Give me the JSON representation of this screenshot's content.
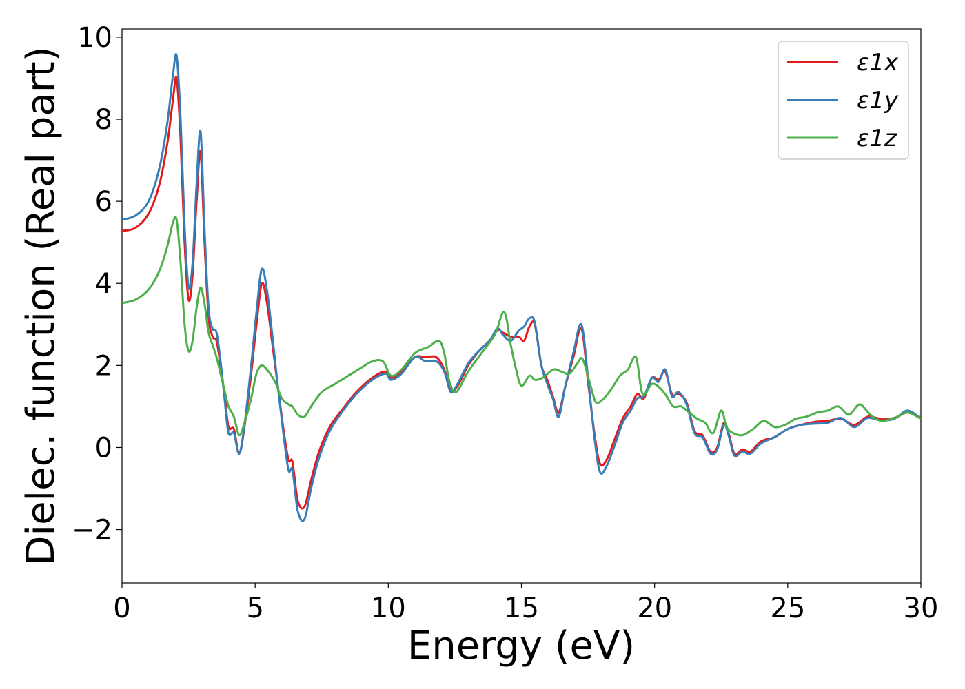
{
  "chart_data": {
    "type": "line",
    "xlabel": "Energy (eV)",
    "ylabel": "Dielec. function (Real part)",
    "xlim": [
      0,
      30
    ],
    "ylim": [
      -3.3,
      10.2
    ],
    "xticks": [
      0,
      5,
      10,
      15,
      20,
      25,
      30
    ],
    "xtick_labels": [
      "0",
      "5",
      "10",
      "15",
      "20",
      "25",
      "30"
    ],
    "yticks": [
      -2,
      0,
      2,
      4,
      6,
      8,
      10
    ],
    "ytick_labels": [
      "−2",
      "0",
      "2",
      "4",
      "6",
      "8",
      "10"
    ],
    "grid": false,
    "legend_position": "top-right",
    "series": [
      {
        "name": "ε1x",
        "color": "#e41a1c",
        "points": [
          [
            0,
            5.28
          ],
          [
            0.5,
            5.35
          ],
          [
            1.0,
            5.7
          ],
          [
            1.4,
            6.4
          ],
          [
            1.7,
            7.4
          ],
          [
            1.9,
            8.4
          ],
          [
            2.05,
            9.0
          ],
          [
            2.2,
            7.5
          ],
          [
            2.35,
            5.0
          ],
          [
            2.5,
            3.6
          ],
          [
            2.65,
            4.2
          ],
          [
            2.8,
            6.0
          ],
          [
            2.95,
            7.2
          ],
          [
            3.1,
            5.0
          ],
          [
            3.25,
            3.2
          ],
          [
            3.4,
            2.7
          ],
          [
            3.55,
            2.6
          ],
          [
            3.7,
            2.0
          ],
          [
            3.85,
            1.3
          ],
          [
            4.0,
            0.5
          ],
          [
            4.2,
            0.45
          ],
          [
            4.4,
            -0.15
          ],
          [
            4.6,
            0.5
          ],
          [
            4.85,
            1.8
          ],
          [
            5.05,
            3.0
          ],
          [
            5.25,
            4.0
          ],
          [
            5.45,
            3.5
          ],
          [
            5.65,
            2.5
          ],
          [
            5.85,
            1.5
          ],
          [
            6.05,
            0.5
          ],
          [
            6.25,
            -0.3
          ],
          [
            6.4,
            -0.35
          ],
          [
            6.6,
            -1.3
          ],
          [
            6.85,
            -1.45
          ],
          [
            7.1,
            -0.8
          ],
          [
            7.4,
            -0.1
          ],
          [
            7.8,
            0.5
          ],
          [
            8.3,
            0.95
          ],
          [
            8.8,
            1.35
          ],
          [
            9.4,
            1.7
          ],
          [
            9.9,
            1.85
          ],
          [
            10.1,
            1.7
          ],
          [
            10.5,
            1.85
          ],
          [
            11.0,
            2.2
          ],
          [
            11.4,
            2.2
          ],
          [
            11.8,
            2.2
          ],
          [
            12.1,
            1.9
          ],
          [
            12.35,
            1.4
          ],
          [
            12.6,
            1.5
          ],
          [
            13.0,
            2.0
          ],
          [
            13.4,
            2.35
          ],
          [
            13.8,
            2.6
          ],
          [
            14.1,
            2.85
          ],
          [
            14.3,
            2.8
          ],
          [
            14.6,
            2.7
          ],
          [
            14.9,
            2.7
          ],
          [
            15.1,
            2.6
          ],
          [
            15.3,
            2.95
          ],
          [
            15.5,
            3.0
          ],
          [
            15.75,
            2.0
          ],
          [
            16.0,
            1.6
          ],
          [
            16.2,
            1.2
          ],
          [
            16.4,
            0.85
          ],
          [
            16.65,
            1.5
          ],
          [
            16.95,
            2.2
          ],
          [
            17.25,
            2.9
          ],
          [
            17.5,
            1.6
          ],
          [
            17.75,
            0.3
          ],
          [
            17.95,
            -0.4
          ],
          [
            18.2,
            -0.3
          ],
          [
            18.5,
            0.2
          ],
          [
            18.8,
            0.7
          ],
          [
            19.1,
            1.0
          ],
          [
            19.35,
            1.3
          ],
          [
            19.6,
            1.2
          ],
          [
            19.9,
            1.7
          ],
          [
            20.15,
            1.65
          ],
          [
            20.4,
            1.85
          ],
          [
            20.65,
            1.3
          ],
          [
            20.9,
            1.3
          ],
          [
            21.2,
            1.1
          ],
          [
            21.5,
            0.4
          ],
          [
            21.8,
            0.3
          ],
          [
            22.1,
            -0.1
          ],
          [
            22.35,
            0.0
          ],
          [
            22.6,
            0.6
          ],
          [
            22.8,
            0.3
          ],
          [
            23.0,
            -0.15
          ],
          [
            23.3,
            -0.05
          ],
          [
            23.6,
            -0.1
          ],
          [
            24.0,
            0.15
          ],
          [
            24.5,
            0.25
          ],
          [
            25.0,
            0.45
          ],
          [
            25.5,
            0.55
          ],
          [
            26.0,
            0.62
          ],
          [
            26.5,
            0.65
          ],
          [
            27.0,
            0.7
          ],
          [
            27.5,
            0.55
          ],
          [
            28.0,
            0.75
          ],
          [
            28.5,
            0.7
          ],
          [
            29.0,
            0.72
          ],
          [
            29.5,
            0.85
          ],
          [
            30.0,
            0.72
          ]
        ]
      },
      {
        "name": "ε1y",
        "color": "#377eb8",
        "points": [
          [
            0,
            5.55
          ],
          [
            0.5,
            5.65
          ],
          [
            1.0,
            6.0
          ],
          [
            1.4,
            6.8
          ],
          [
            1.7,
            7.9
          ],
          [
            1.9,
            9.0
          ],
          [
            2.05,
            9.55
          ],
          [
            2.2,
            8.0
          ],
          [
            2.35,
            5.4
          ],
          [
            2.5,
            3.9
          ],
          [
            2.65,
            4.5
          ],
          [
            2.8,
            6.4
          ],
          [
            2.95,
            7.7
          ],
          [
            3.1,
            5.3
          ],
          [
            3.25,
            3.4
          ],
          [
            3.4,
            2.9
          ],
          [
            3.55,
            2.8
          ],
          [
            3.7,
            2.1
          ],
          [
            3.85,
            1.2
          ],
          [
            4.0,
            0.35
          ],
          [
            4.2,
            0.35
          ],
          [
            4.4,
            -0.15
          ],
          [
            4.6,
            0.55
          ],
          [
            4.85,
            2.0
          ],
          [
            5.05,
            3.3
          ],
          [
            5.25,
            4.35
          ],
          [
            5.45,
            3.8
          ],
          [
            5.65,
            2.7
          ],
          [
            5.85,
            1.5
          ],
          [
            6.05,
            0.4
          ],
          [
            6.25,
            -0.55
          ],
          [
            6.4,
            -0.55
          ],
          [
            6.6,
            -1.55
          ],
          [
            6.85,
            -1.75
          ],
          [
            7.1,
            -1.0
          ],
          [
            7.4,
            -0.25
          ],
          [
            7.8,
            0.4
          ],
          [
            8.3,
            0.9
          ],
          [
            8.8,
            1.3
          ],
          [
            9.4,
            1.65
          ],
          [
            9.9,
            1.8
          ],
          [
            10.1,
            1.65
          ],
          [
            10.5,
            1.8
          ],
          [
            11.0,
            2.2
          ],
          [
            11.4,
            2.1
          ],
          [
            11.8,
            2.1
          ],
          [
            12.1,
            1.85
          ],
          [
            12.35,
            1.35
          ],
          [
            12.6,
            1.55
          ],
          [
            13.0,
            2.05
          ],
          [
            13.4,
            2.35
          ],
          [
            13.8,
            2.6
          ],
          [
            14.1,
            2.9
          ],
          [
            14.3,
            2.75
          ],
          [
            14.6,
            2.6
          ],
          [
            14.9,
            2.85
          ],
          [
            15.1,
            2.95
          ],
          [
            15.3,
            3.15
          ],
          [
            15.5,
            3.05
          ],
          [
            15.75,
            2.0
          ],
          [
            16.0,
            1.5
          ],
          [
            16.2,
            1.15
          ],
          [
            16.4,
            0.75
          ],
          [
            16.65,
            1.5
          ],
          [
            16.95,
            2.3
          ],
          [
            17.25,
            3.0
          ],
          [
            17.5,
            1.7
          ],
          [
            17.75,
            0.2
          ],
          [
            17.95,
            -0.6
          ],
          [
            18.2,
            -0.45
          ],
          [
            18.5,
            0.05
          ],
          [
            18.8,
            0.6
          ],
          [
            19.1,
            0.9
          ],
          [
            19.35,
            1.2
          ],
          [
            19.6,
            1.25
          ],
          [
            19.9,
            1.7
          ],
          [
            20.15,
            1.6
          ],
          [
            20.4,
            1.9
          ],
          [
            20.65,
            1.25
          ],
          [
            20.9,
            1.35
          ],
          [
            21.2,
            1.05
          ],
          [
            21.5,
            0.35
          ],
          [
            21.8,
            0.25
          ],
          [
            22.1,
            -0.15
          ],
          [
            22.35,
            -0.05
          ],
          [
            22.6,
            0.55
          ],
          [
            22.8,
            0.25
          ],
          [
            23.0,
            -0.2
          ],
          [
            23.3,
            -0.1
          ],
          [
            23.6,
            -0.15
          ],
          [
            24.0,
            0.1
          ],
          [
            24.5,
            0.25
          ],
          [
            25.0,
            0.45
          ],
          [
            25.5,
            0.55
          ],
          [
            26.0,
            0.58
          ],
          [
            26.5,
            0.6
          ],
          [
            27.0,
            0.72
          ],
          [
            27.5,
            0.5
          ],
          [
            28.0,
            0.72
          ],
          [
            28.5,
            0.66
          ],
          [
            29.0,
            0.7
          ],
          [
            29.5,
            0.9
          ],
          [
            30.0,
            0.7
          ]
        ]
      },
      {
        "name": "ε1z",
        "color": "#4daf4a",
        "points": [
          [
            0,
            3.52
          ],
          [
            0.5,
            3.6
          ],
          [
            1.0,
            3.85
          ],
          [
            1.4,
            4.3
          ],
          [
            1.7,
            4.9
          ],
          [
            1.9,
            5.45
          ],
          [
            2.05,
            5.55
          ],
          [
            2.2,
            4.5
          ],
          [
            2.35,
            3.0
          ],
          [
            2.5,
            2.35
          ],
          [
            2.65,
            2.6
          ],
          [
            2.8,
            3.4
          ],
          [
            2.95,
            3.9
          ],
          [
            3.1,
            3.5
          ],
          [
            3.25,
            2.8
          ],
          [
            3.4,
            2.5
          ],
          [
            3.55,
            2.2
          ],
          [
            3.7,
            1.8
          ],
          [
            3.85,
            1.4
          ],
          [
            4.0,
            1.0
          ],
          [
            4.2,
            0.75
          ],
          [
            4.4,
            0.3
          ],
          [
            4.6,
            0.6
          ],
          [
            4.85,
            1.2
          ],
          [
            5.05,
            1.8
          ],
          [
            5.25,
            2.0
          ],
          [
            5.5,
            1.85
          ],
          [
            5.75,
            1.6
          ],
          [
            6.0,
            1.2
          ],
          [
            6.25,
            1.05
          ],
          [
            6.4,
            1.0
          ],
          [
            6.6,
            0.8
          ],
          [
            6.85,
            0.75
          ],
          [
            7.1,
            1.0
          ],
          [
            7.5,
            1.35
          ],
          [
            8.0,
            1.55
          ],
          [
            8.5,
            1.75
          ],
          [
            9.0,
            1.95
          ],
          [
            9.4,
            2.1
          ],
          [
            9.8,
            2.1
          ],
          [
            10.1,
            1.75
          ],
          [
            10.5,
            1.9
          ],
          [
            11.0,
            2.3
          ],
          [
            11.5,
            2.45
          ],
          [
            11.9,
            2.6
          ],
          [
            12.1,
            2.3
          ],
          [
            12.3,
            1.6
          ],
          [
            12.55,
            1.35
          ],
          [
            13.0,
            1.85
          ],
          [
            13.5,
            2.3
          ],
          [
            14.0,
            2.75
          ],
          [
            14.35,
            3.3
          ],
          [
            14.6,
            2.5
          ],
          [
            14.8,
            1.9
          ],
          [
            15.0,
            1.5
          ],
          [
            15.3,
            1.75
          ],
          [
            15.5,
            1.65
          ],
          [
            15.8,
            1.7
          ],
          [
            16.2,
            1.9
          ],
          [
            16.5,
            1.85
          ],
          [
            16.8,
            1.8
          ],
          [
            17.1,
            2.05
          ],
          [
            17.3,
            2.15
          ],
          [
            17.6,
            1.5
          ],
          [
            17.8,
            1.1
          ],
          [
            18.1,
            1.2
          ],
          [
            18.4,
            1.45
          ],
          [
            18.7,
            1.75
          ],
          [
            19.0,
            1.9
          ],
          [
            19.3,
            2.2
          ],
          [
            19.55,
            1.3
          ],
          [
            19.9,
            1.55
          ],
          [
            20.2,
            1.45
          ],
          [
            20.45,
            1.25
          ],
          [
            20.7,
            1.0
          ],
          [
            21.0,
            1.0
          ],
          [
            21.3,
            0.85
          ],
          [
            21.6,
            0.7
          ],
          [
            21.9,
            0.6
          ],
          [
            22.2,
            0.35
          ],
          [
            22.5,
            0.9
          ],
          [
            22.7,
            0.5
          ],
          [
            22.95,
            0.35
          ],
          [
            23.3,
            0.3
          ],
          [
            23.7,
            0.45
          ],
          [
            24.1,
            0.65
          ],
          [
            24.5,
            0.5
          ],
          [
            24.9,
            0.55
          ],
          [
            25.3,
            0.7
          ],
          [
            25.7,
            0.75
          ],
          [
            26.1,
            0.85
          ],
          [
            26.5,
            0.9
          ],
          [
            26.9,
            1.0
          ],
          [
            27.3,
            0.8
          ],
          [
            27.7,
            1.05
          ],
          [
            28.1,
            0.8
          ],
          [
            28.5,
            0.65
          ],
          [
            29.0,
            0.72
          ],
          [
            29.5,
            0.85
          ],
          [
            30.0,
            0.7
          ]
        ]
      }
    ]
  }
}
